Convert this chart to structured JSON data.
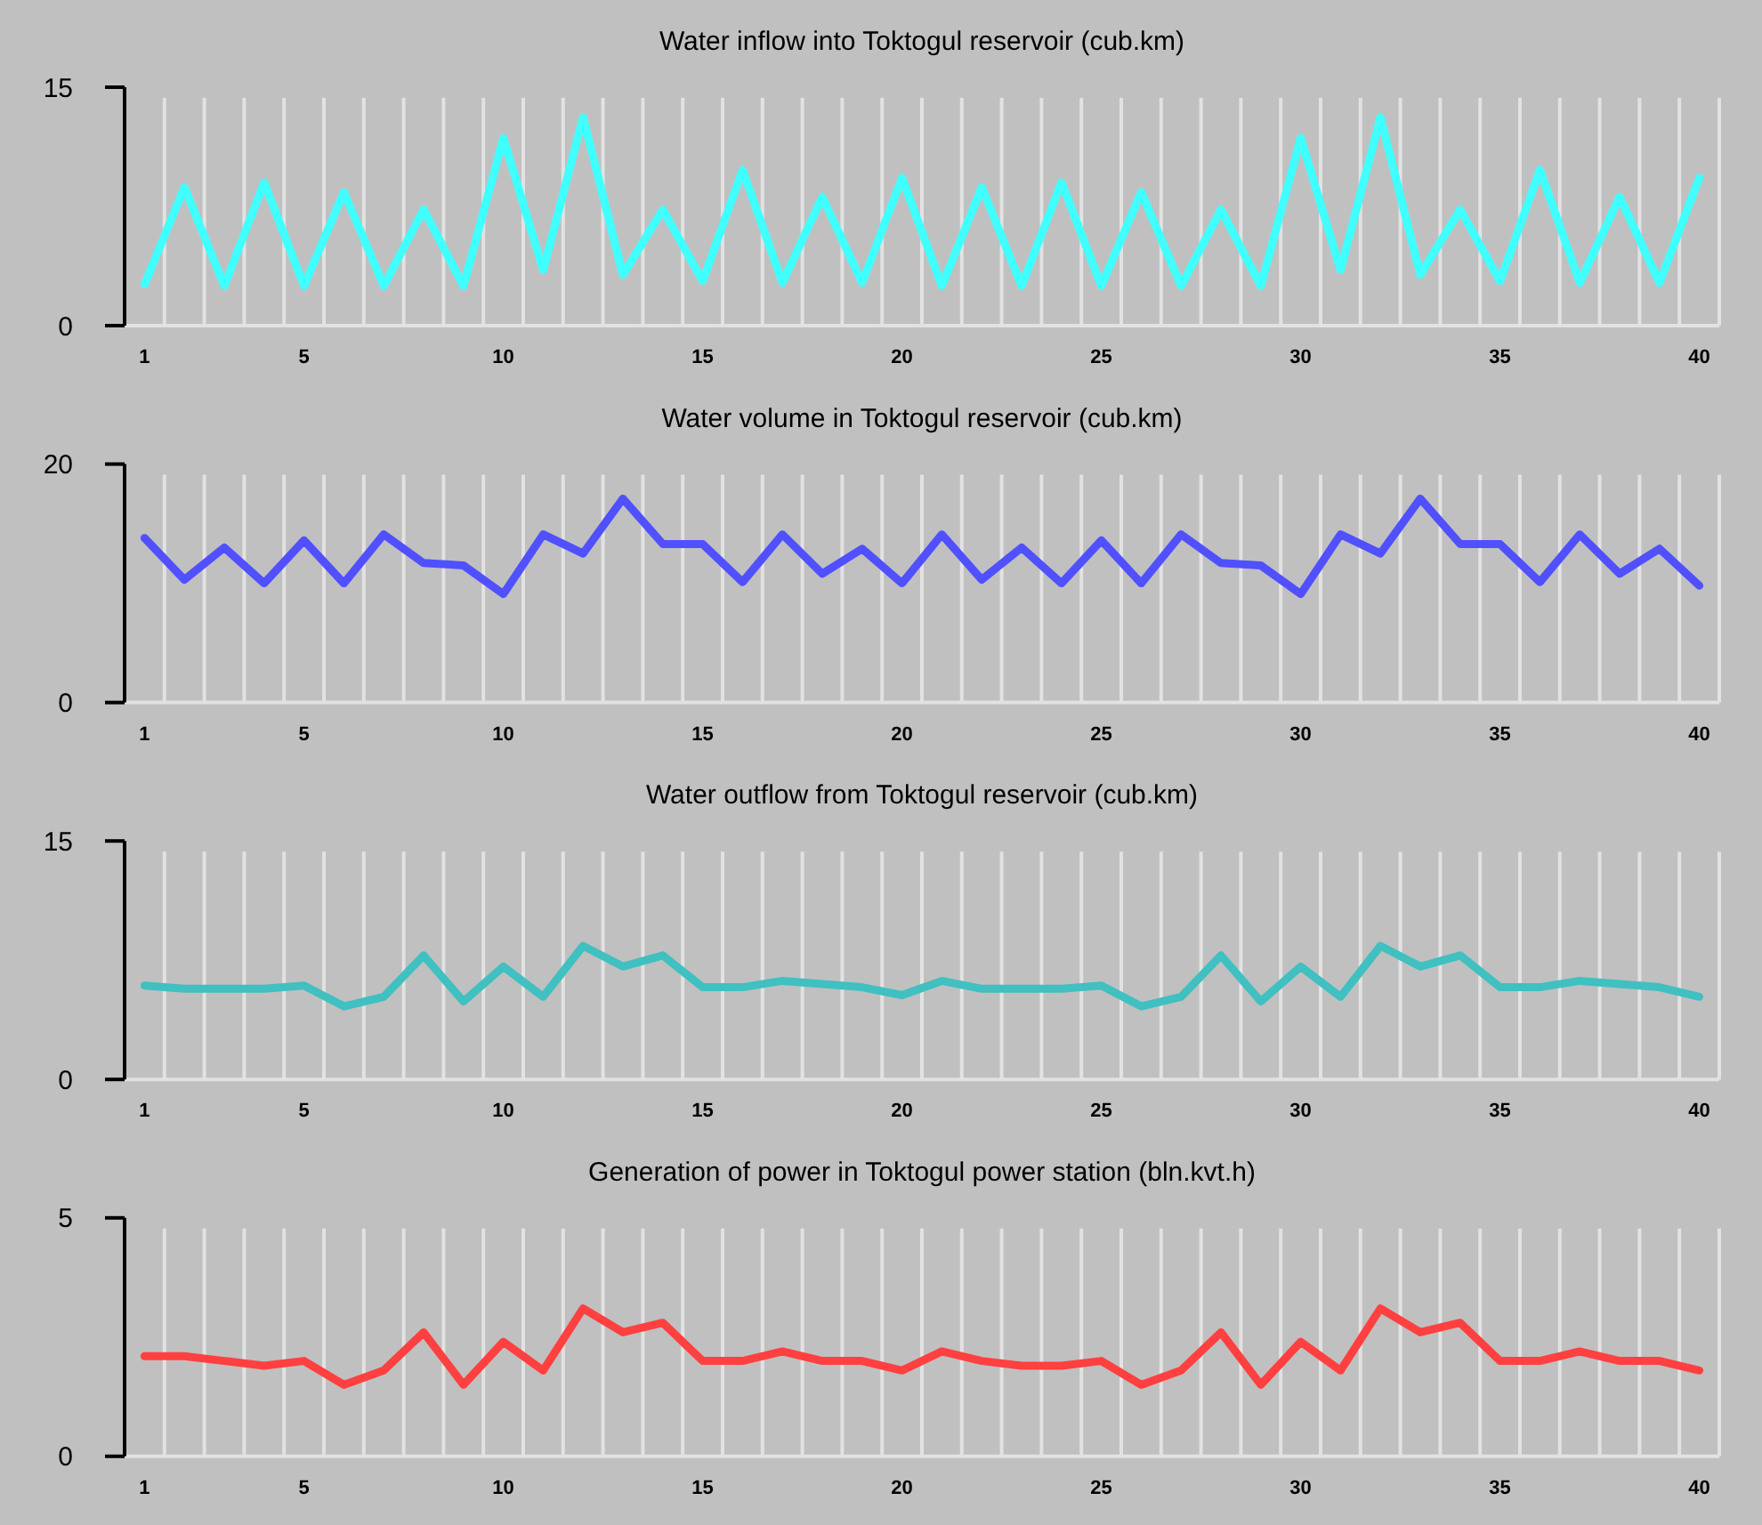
{
  "chart_data": [
    {
      "type": "line",
      "title": "Water inflow into Toktogul reservoir (cub.km)",
      "categories": [
        "1",
        null,
        null,
        null,
        "5",
        null,
        null,
        null,
        null,
        "10",
        null,
        null,
        null,
        null,
        "15",
        null,
        null,
        null,
        null,
        "20",
        null,
        null,
        null,
        null,
        "25",
        null,
        null,
        null,
        null,
        "30",
        null,
        null,
        null,
        null,
        "35",
        null,
        null,
        null,
        null,
        "40"
      ],
      "values": [
        2.6,
        8.7,
        2.5,
        9.0,
        2.5,
        8.4,
        2.5,
        7.3,
        2.5,
        11.8,
        3.5,
        13.1,
        3.2,
        7.3,
        2.8,
        9.8,
        2.7,
        8.1,
        2.7,
        9.3,
        2.5,
        8.7,
        2.5,
        9.0,
        2.5,
        8.4,
        2.5,
        7.3,
        2.5,
        11.8,
        3.5,
        13.1,
        3.2,
        7.3,
        2.8,
        9.8,
        2.7,
        8.1,
        2.7,
        9.3
      ],
      "color": "#40ffff",
      "ylim": [
        0,
        15
      ],
      "yticks": [
        0,
        15
      ],
      "grid": "x"
    },
    {
      "type": "line",
      "title": "Water volume in Toktogul reservoir (cub.km)",
      "categories": [
        "1",
        null,
        null,
        null,
        "5",
        null,
        null,
        null,
        null,
        "10",
        null,
        null,
        null,
        null,
        "15",
        null,
        null,
        null,
        null,
        "20",
        null,
        null,
        null,
        null,
        "25",
        null,
        null,
        null,
        null,
        "30",
        null,
        null,
        null,
        null,
        "35",
        null,
        null,
        null,
        null,
        "40"
      ],
      "values": [
        13.8,
        10.3,
        13.0,
        10.0,
        13.6,
        10.0,
        14.1,
        11.7,
        11.5,
        9.1,
        14.1,
        12.5,
        17.1,
        13.3,
        13.3,
        10.1,
        14.1,
        10.8,
        12.9,
        10.0,
        14.1,
        10.3,
        13.0,
        10.0,
        13.6,
        10.0,
        14.1,
        11.7,
        11.5,
        9.1,
        14.1,
        12.5,
        17.1,
        13.3,
        13.3,
        10.1,
        14.1,
        10.8,
        12.9,
        9.8
      ],
      "color": "#5050ff",
      "ylim": [
        0,
        20
      ],
      "yticks": [
        0,
        20
      ],
      "grid": "x"
    },
    {
      "type": "line",
      "title": "Water outflow from Toktogul reservoir (cub.km)",
      "categories": [
        "1",
        null,
        null,
        null,
        "5",
        null,
        null,
        null,
        null,
        "10",
        null,
        null,
        null,
        null,
        "15",
        null,
        null,
        null,
        null,
        "20",
        null,
        null,
        null,
        null,
        "25",
        null,
        null,
        null,
        null,
        "30",
        null,
        null,
        null,
        null,
        "35",
        null,
        null,
        null,
        null,
        "40"
      ],
      "values": [
        5.9,
        5.7,
        5.7,
        5.7,
        5.9,
        4.6,
        5.2,
        7.8,
        4.9,
        7.1,
        5.2,
        8.4,
        7.1,
        7.8,
        5.8,
        5.8,
        6.2,
        6.0,
        5.8,
        5.3,
        6.2,
        5.7,
        5.7,
        5.7,
        5.9,
        4.6,
        5.2,
        7.8,
        4.9,
        7.1,
        5.2,
        8.4,
        7.1,
        7.8,
        5.8,
        5.8,
        6.2,
        6.0,
        5.8,
        5.2
      ],
      "color": "#40c0c0",
      "ylim": [
        0,
        15
      ],
      "yticks": [
        0,
        15
      ],
      "grid": "x"
    },
    {
      "type": "line",
      "title": "Generation of power in Toktogul power station (bln.kvt.h)",
      "categories": [
        "1",
        null,
        null,
        null,
        "5",
        null,
        null,
        null,
        null,
        "10",
        null,
        null,
        null,
        null,
        "15",
        null,
        null,
        null,
        null,
        "20",
        null,
        null,
        null,
        null,
        "25",
        null,
        null,
        null,
        null,
        "30",
        null,
        null,
        null,
        null,
        "35",
        null,
        null,
        null,
        null,
        "40"
      ],
      "values": [
        2.1,
        2.1,
        2.0,
        1.9,
        2.0,
        1.5,
        1.8,
        2.6,
        1.5,
        2.4,
        1.8,
        3.1,
        2.6,
        2.8,
        2.0,
        2.0,
        2.2,
        2.0,
        2.0,
        1.8,
        2.2,
        2.0,
        1.9,
        1.9,
        2.0,
        1.5,
        1.8,
        2.6,
        1.5,
        2.4,
        1.8,
        3.1,
        2.6,
        2.8,
        2.0,
        2.0,
        2.2,
        2.0,
        2.0,
        1.8
      ],
      "color": "#ff4040",
      "ylim": [
        0,
        5
      ],
      "yticks": [
        0,
        5
      ],
      "grid": "x"
    }
  ]
}
